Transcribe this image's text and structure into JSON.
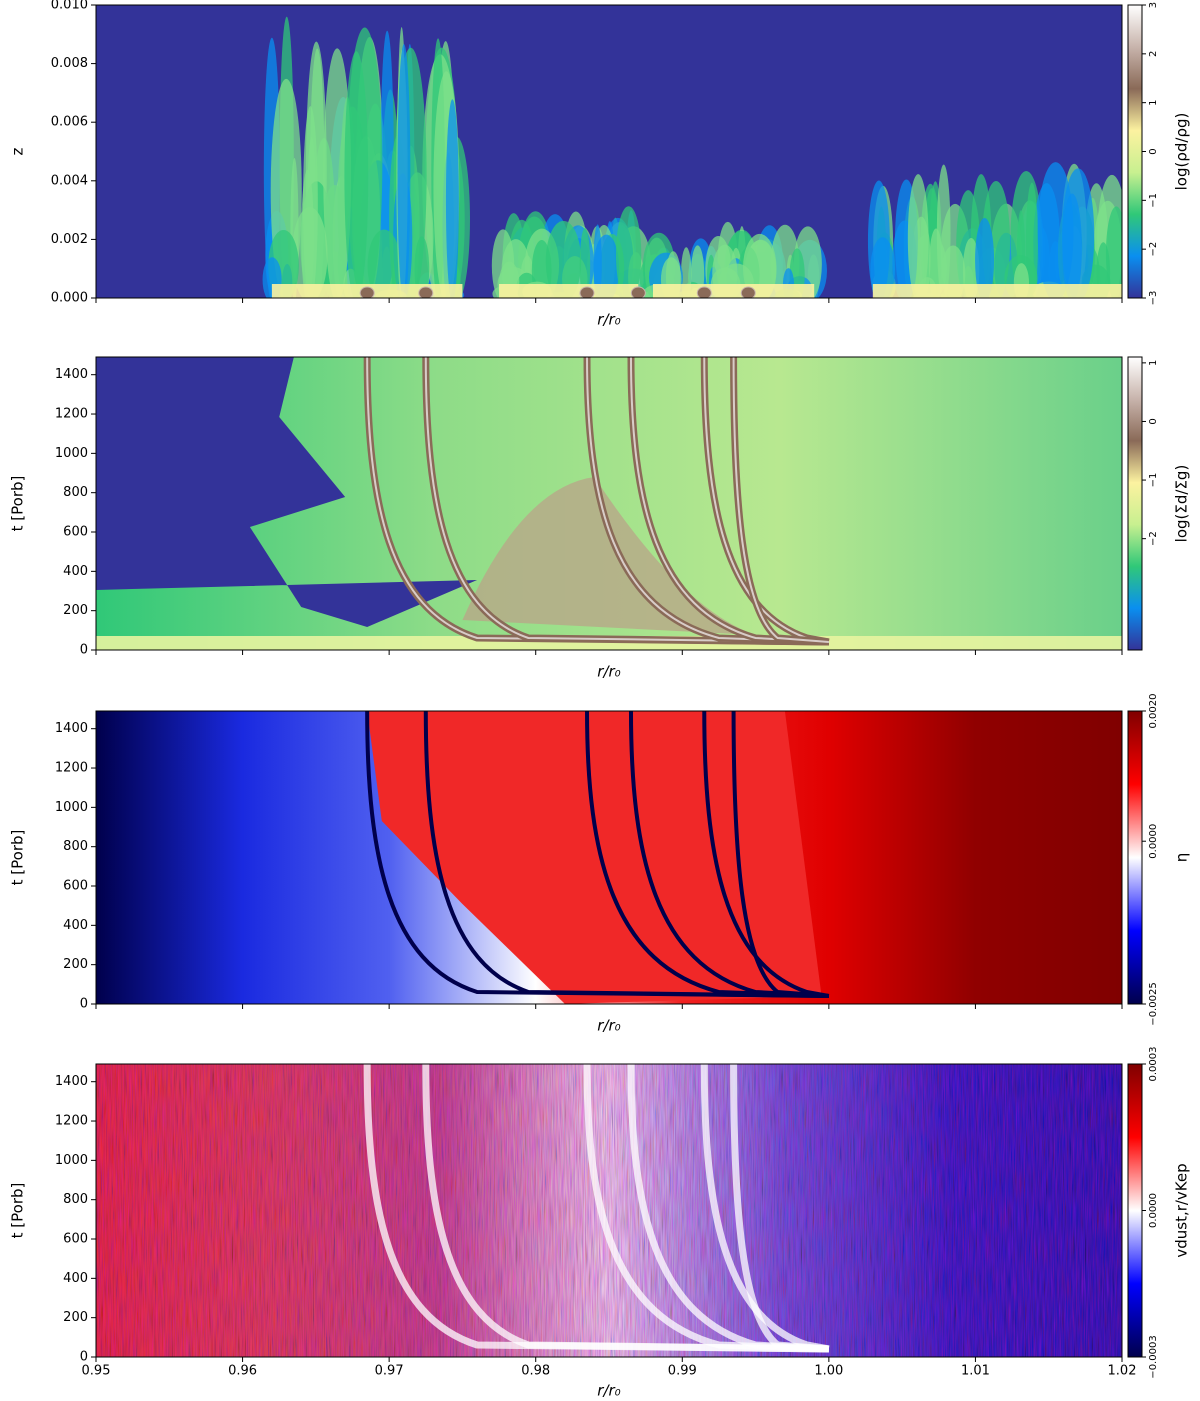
{
  "chart_data": [
    {
      "type": "heatmap",
      "ylabel": "z",
      "xlabel": "r/r₀",
      "colorbar_label": "log(ρd/ρg)",
      "ylim": [
        0,
        0.01
      ],
      "yticks": [
        {
          "value": 0,
          "label": "0.000"
        },
        0.002,
        0.004,
        0.006,
        0.008,
        {
          "value": 0.01,
          "label": "0.010"
        }
      ],
      "clim": [
        -3,
        3
      ],
      "cticks": [
        {
          "value": -3,
          "label": "−3"
        },
        {
          "value": -2,
          "label": "−2"
        },
        {
          "value": -1,
          "label": "−1"
        },
        0,
        1,
        2,
        3
      ],
      "colormap": [
        "#333399",
        "#0a8ff0",
        "#30c878",
        "#c8f090",
        "#fcf2a0",
        "#8a6a58",
        "#c8b4ac",
        "#ffffff"
      ]
    },
    {
      "type": "heatmap",
      "ylabel": "t [Porb]",
      "xlabel": "r/r₀",
      "colorbar_label": "log(Σd/Σg)",
      "ylim": [
        0,
        1490
      ],
      "yticks": [
        0,
        200,
        400,
        600,
        800,
        1000,
        1200,
        1400
      ],
      "clim": [
        -3.9,
        1.1
      ],
      "cticks": [
        {
          "value": -2,
          "label": "−2"
        },
        {
          "value": -1,
          "label": "−1"
        },
        0,
        1
      ],
      "colormap": [
        "#333399",
        "#0a8ff0",
        "#30c878",
        "#c8f090",
        "#fcf2a0",
        "#8a6a58",
        "#c8b4ac",
        "#ffffff"
      ]
    },
    {
      "type": "heatmap",
      "ylabel": "t [Porb]",
      "xlabel": "r/r₀",
      "colorbar_label": "η",
      "ylim": [
        0,
        1490
      ],
      "yticks": [
        0,
        200,
        400,
        600,
        800,
        1000,
        1200,
        1400
      ],
      "clim": [
        -0.0025,
        0.002
      ],
      "cticks": [
        {
          "value": -0.0025,
          "label": "−0.0025"
        },
        {
          "value": 0,
          "label": "0.0000"
        },
        {
          "value": 0.002,
          "label": "0.0020"
        }
      ],
      "colormap": [
        "#00004c",
        "#0000ff",
        "#ffffff",
        "#ff0000",
        "#800000"
      ]
    },
    {
      "type": "heatmap",
      "ylabel": "t [Porb]",
      "xlabel": "r/r₀",
      "colorbar_label": "vdust,r/vKep",
      "xlim": [
        0.95,
        1.02
      ],
      "xticks": [
        0.95,
        0.96,
        0.97,
        0.98,
        0.99,
        {
          "value": 1,
          "label": "1.00"
        },
        1.01,
        1.02
      ],
      "ylim": [
        0,
        1490
      ],
      "yticks": [
        0,
        200,
        400,
        600,
        800,
        1000,
        1200,
        1400
      ],
      "clim": [
        -0.0003,
        0.0003
      ],
      "cticks": [
        {
          "value": -0.0003,
          "label": "−0.0003"
        },
        {
          "value": 0,
          "label": "0.0000"
        },
        {
          "value": 0.0003,
          "label": "0.0003"
        }
      ],
      "colormap": [
        "#00004c",
        "#0000ff",
        "#ffffff",
        "#ff0000",
        "#800000"
      ]
    }
  ]
}
